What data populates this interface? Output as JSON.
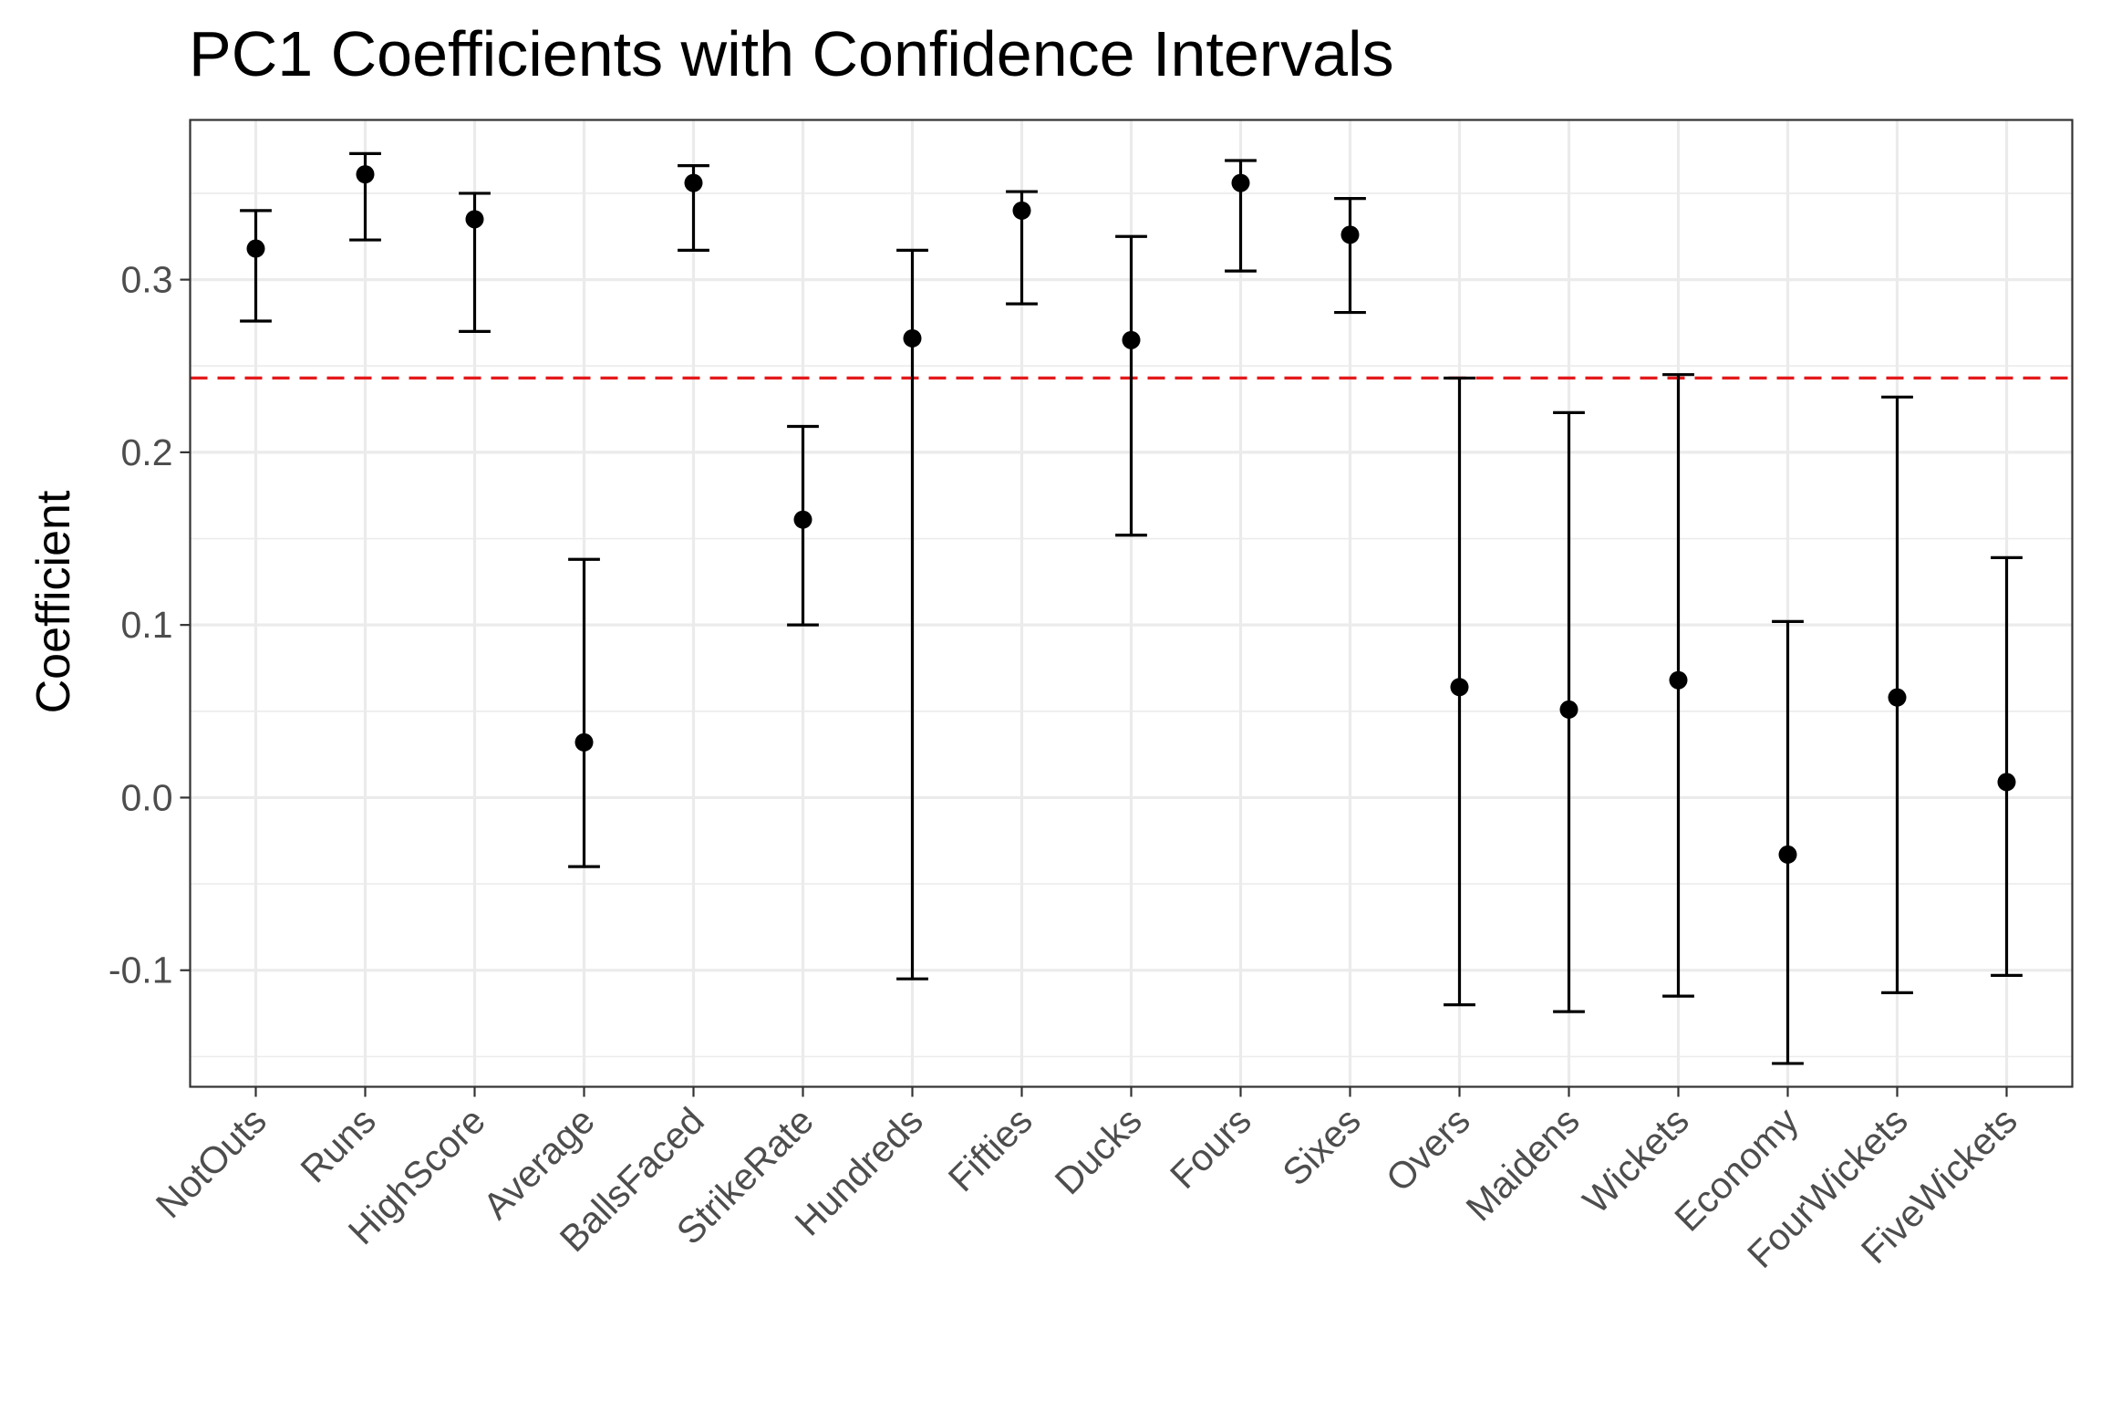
{
  "chart_data": {
    "type": "scatter",
    "title": "PC1 Coefficients with Confidence Intervals",
    "xlabel": "",
    "ylabel": "Coefficient",
    "categories": [
      "NotOuts",
      "Runs",
      "HighScore",
      "Average",
      "BallsFaced",
      "StrikeRate",
      "Hundreds",
      "Fifties",
      "Ducks",
      "Fours",
      "Sixes",
      "Overs",
      "Maidens",
      "Wickets",
      "Economy",
      "FourWickets",
      "FiveWickets"
    ],
    "values": [
      0.318,
      0.361,
      0.335,
      0.032,
      0.356,
      0.161,
      0.266,
      0.34,
      0.265,
      0.356,
      0.326,
      0.064,
      0.051,
      0.068,
      -0.033,
      0.058,
      0.009
    ],
    "lower": [
      0.276,
      0.323,
      0.27,
      -0.04,
      0.317,
      0.1,
      -0.105,
      0.286,
      0.152,
      0.305,
      0.281,
      -0.12,
      -0.124,
      -0.115,
      -0.154,
      -0.113,
      -0.103
    ],
    "upper": [
      0.34,
      0.373,
      0.35,
      0.138,
      0.366,
      0.215,
      0.317,
      0.351,
      0.325,
      0.369,
      0.347,
      0.243,
      0.223,
      0.245,
      0.102,
      0.232,
      0.139
    ],
    "reference_line": {
      "value": 0.243,
      "style": "dashed",
      "color": "#e41a1c"
    },
    "ylim": [
      -0.1675,
      0.3925
    ],
    "yticks": [
      -0.1,
      0.0,
      0.1,
      0.2,
      0.3
    ],
    "ytick_labels": [
      "-0.1",
      "0.0",
      "0.1",
      "0.2",
      "0.3"
    ],
    "grid": true,
    "legend": "none",
    "colors": {
      "point": "#000000",
      "errorbar": "#000000",
      "grid": "#ebebeb",
      "panel_border": "#333333",
      "tick_text": "#4d4d4d"
    }
  }
}
